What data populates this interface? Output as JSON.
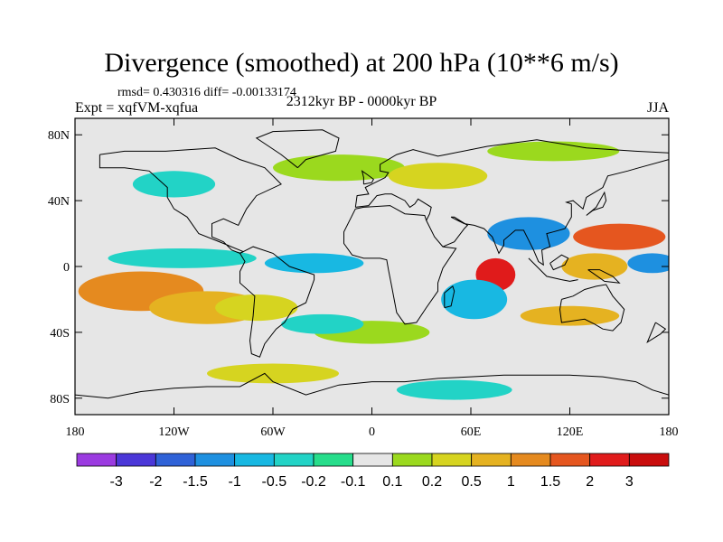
{
  "chart_data": {
    "type": "heatmap",
    "title": "Divergence (smoothed) at 200 hPa (10**6 m/s)",
    "stats_text": "rmsd= 0.430316 diff= -0.00133174",
    "expt_text": "Expt = xqfVM-xqfua",
    "period_text": "2312kyr BP - 0000kyr BP",
    "season_text": "JJA",
    "x_ticks": [
      "180",
      "120W",
      "60W",
      "0",
      "60E",
      "120E",
      "180"
    ],
    "y_ticks": [
      "80N",
      "40N",
      "0",
      "40S",
      "80S"
    ],
    "xlim": [
      -180,
      180
    ],
    "ylim": [
      -90,
      90
    ],
    "colorbar_labels": [
      "-3",
      "-2",
      "-1.5",
      "-1",
      "-0.5",
      "-0.2",
      "-0.1",
      "0.1",
      "0.2",
      "0.5",
      "1",
      "1.5",
      "2",
      "3"
    ],
    "colors": [
      "#9b3be0",
      "#4b37d8",
      "#2f62d7",
      "#1e90e0",
      "#18b8e2",
      "#22d3c6",
      "#27dd8b",
      "#e6e6e6",
      "#9bd91e",
      "#d6d420",
      "#e5b221",
      "#e58a1f",
      "#e5561f",
      "#e01b1b",
      "#c90d0d"
    ],
    "blobs": [
      {
        "lon": -140,
        "lat": -15,
        "rx": 38,
        "ry": 12,
        "level": 11
      },
      {
        "lon": -100,
        "lat": -25,
        "rx": 35,
        "ry": 10,
        "level": 10
      },
      {
        "lon": -70,
        "lat": -25,
        "rx": 25,
        "ry": 8,
        "level": 9
      },
      {
        "lon": -115,
        "lat": 5,
        "rx": 45,
        "ry": 6,
        "level": 5
      },
      {
        "lon": -35,
        "lat": 2,
        "rx": 30,
        "ry": 6,
        "level": 4
      },
      {
        "lon": 75,
        "lat": -5,
        "rx": 12,
        "ry": 10,
        "level": 13
      },
      {
        "lon": 62,
        "lat": -20,
        "rx": 20,
        "ry": 12,
        "level": 4
      },
      {
        "lon": 95,
        "lat": 20,
        "rx": 25,
        "ry": 10,
        "level": 3
      },
      {
        "lon": 150,
        "lat": 18,
        "rx": 28,
        "ry": 8,
        "level": 12
      },
      {
        "lon": 170,
        "lat": 2,
        "rx": 15,
        "ry": 6,
        "level": 3
      },
      {
        "lon": 135,
        "lat": 0,
        "rx": 20,
        "ry": 8,
        "level": 10
      },
      {
        "lon": -20,
        "lat": 60,
        "rx": 40,
        "ry": 8,
        "level": 8
      },
      {
        "lon": -120,
        "lat": 50,
        "rx": 25,
        "ry": 8,
        "level": 5
      },
      {
        "lon": 40,
        "lat": 55,
        "rx": 30,
        "ry": 8,
        "level": 9
      },
      {
        "lon": 110,
        "lat": 70,
        "rx": 40,
        "ry": 6,
        "level": 8
      },
      {
        "lon": 0,
        "lat": -40,
        "rx": 35,
        "ry": 7,
        "level": 8
      },
      {
        "lon": -30,
        "lat": -35,
        "rx": 25,
        "ry": 6,
        "level": 5
      },
      {
        "lon": 120,
        "lat": -30,
        "rx": 30,
        "ry": 6,
        "level": 10
      },
      {
        "lon": -60,
        "lat": -65,
        "rx": 40,
        "ry": 6,
        "level": 9
      },
      {
        "lon": 50,
        "lat": -75,
        "rx": 35,
        "ry": 6,
        "level": 5
      }
    ]
  }
}
